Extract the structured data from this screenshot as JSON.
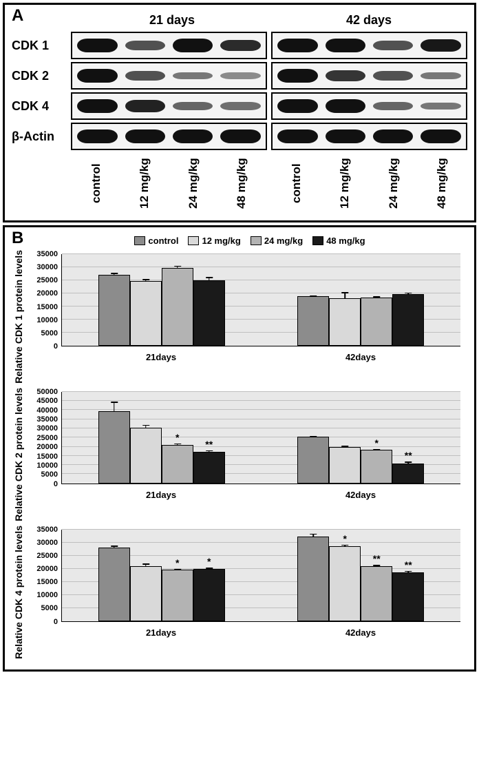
{
  "panels": {
    "A": {
      "label": "A"
    },
    "B": {
      "label": "B"
    }
  },
  "timepoints": [
    "21 days",
    "42 days"
  ],
  "lane_labels": [
    "control",
    "12 mg/kg",
    "24 mg/kg",
    "48 mg/kg"
  ],
  "blots": {
    "rows": [
      "CDK 1",
      "CDK 2",
      "CDK 4",
      "β-Actin"
    ],
    "band_color": "#111111",
    "border_color": "#000000",
    "bg_color": "#f4f4f4",
    "intensity": {
      "CDK 1": {
        "21": [
          1.0,
          0.55,
          1.05,
          0.75
        ],
        "42": [
          0.95,
          1.0,
          0.55,
          0.85
        ]
      },
      "CDK 2": {
        "21": [
          1.0,
          0.55,
          0.35,
          0.25
        ],
        "42": [
          0.95,
          0.7,
          0.55,
          0.35
        ]
      },
      "CDK 4": {
        "21": [
          1.0,
          0.8,
          0.45,
          0.4
        ],
        "42": [
          1.0,
          0.95,
          0.45,
          0.35
        ]
      },
      "β-Actin": {
        "21": [
          1.0,
          1.0,
          1.0,
          1.0
        ],
        "42": [
          1.0,
          1.0,
          1.0,
          1.0
        ]
      }
    }
  },
  "legend": [
    {
      "label": "control",
      "color": "#8c8c8c"
    },
    {
      "label": "12 mg/kg",
      "color": "#d9d9d9"
    },
    {
      "label": "24 mg/kg",
      "color": "#b3b3b3"
    },
    {
      "label": "48 mg/kg",
      "color": "#1a1a1a"
    }
  ],
  "chart_style": {
    "plot_bg": "#e8e8e8",
    "grid_color": "#bfbfbf",
    "axis_color": "#000000",
    "bar_border": "#000000",
    "err_color": "#000000",
    "label_fontsize": 13,
    "tick_fontsize": 11,
    "ylabel_fontsize": 14
  },
  "charts": [
    {
      "ylabel": "Relative CDK 1 protein levels",
      "ylim": [
        0,
        35000
      ],
      "ytick_step": 5000,
      "clusters": [
        {
          "xlabel": "21days",
          "bars": [
            {
              "val": 26700,
              "err": 1100,
              "sig": ""
            },
            {
              "val": 24200,
              "err": 1300,
              "sig": ""
            },
            {
              "val": 29200,
              "err": 1400,
              "sig": ""
            },
            {
              "val": 24400,
              "err": 1900,
              "sig": ""
            }
          ]
        },
        {
          "xlabel": "42days",
          "bars": [
            {
              "val": 18300,
              "err": 900,
              "sig": ""
            },
            {
              "val": 17700,
              "err": 2800,
              "sig": ""
            },
            {
              "val": 17900,
              "err": 1000,
              "sig": ""
            },
            {
              "val": 19200,
              "err": 1200,
              "sig": ""
            }
          ]
        }
      ]
    },
    {
      "ylabel": "Relative CDK 2 protein levels",
      "ylim": [
        0,
        50000
      ],
      "ytick_step": 5000,
      "clusters": [
        {
          "xlabel": "21days",
          "bars": [
            {
              "val": 38500,
              "err": 6000,
              "sig": ""
            },
            {
              "val": 29700,
              "err": 2200,
              "sig": ""
            },
            {
              "val": 20300,
              "err": 1600,
              "sig": "*"
            },
            {
              "val": 16600,
              "err": 1500,
              "sig": "**"
            }
          ]
        },
        {
          "xlabel": "42days",
          "bars": [
            {
              "val": 24600,
              "err": 1300,
              "sig": ""
            },
            {
              "val": 18900,
              "err": 1600,
              "sig": ""
            },
            {
              "val": 17500,
              "err": 1200,
              "sig": "*"
            },
            {
              "val": 10200,
              "err": 1700,
              "sig": "**"
            }
          ]
        }
      ]
    },
    {
      "ylabel": "Relative CDK 4 protein levels",
      "ylim": [
        0,
        35000
      ],
      "ytick_step": 5000,
      "clusters": [
        {
          "xlabel": "21days",
          "bars": [
            {
              "val": 27400,
              "err": 1300,
              "sig": ""
            },
            {
              "val": 20500,
              "err": 1400,
              "sig": ""
            },
            {
              "val": 19000,
              "err": 900,
              "sig": "*"
            },
            {
              "val": 19300,
              "err": 1000,
              "sig": "*"
            }
          ]
        },
        {
          "xlabel": "42days",
          "bars": [
            {
              "val": 31700,
              "err": 1600,
              "sig": ""
            },
            {
              "val": 27900,
              "err": 1300,
              "sig": "*"
            },
            {
              "val": 20400,
              "err": 1000,
              "sig": "**"
            },
            {
              "val": 17900,
              "err": 1200,
              "sig": "**"
            }
          ]
        }
      ]
    }
  ]
}
